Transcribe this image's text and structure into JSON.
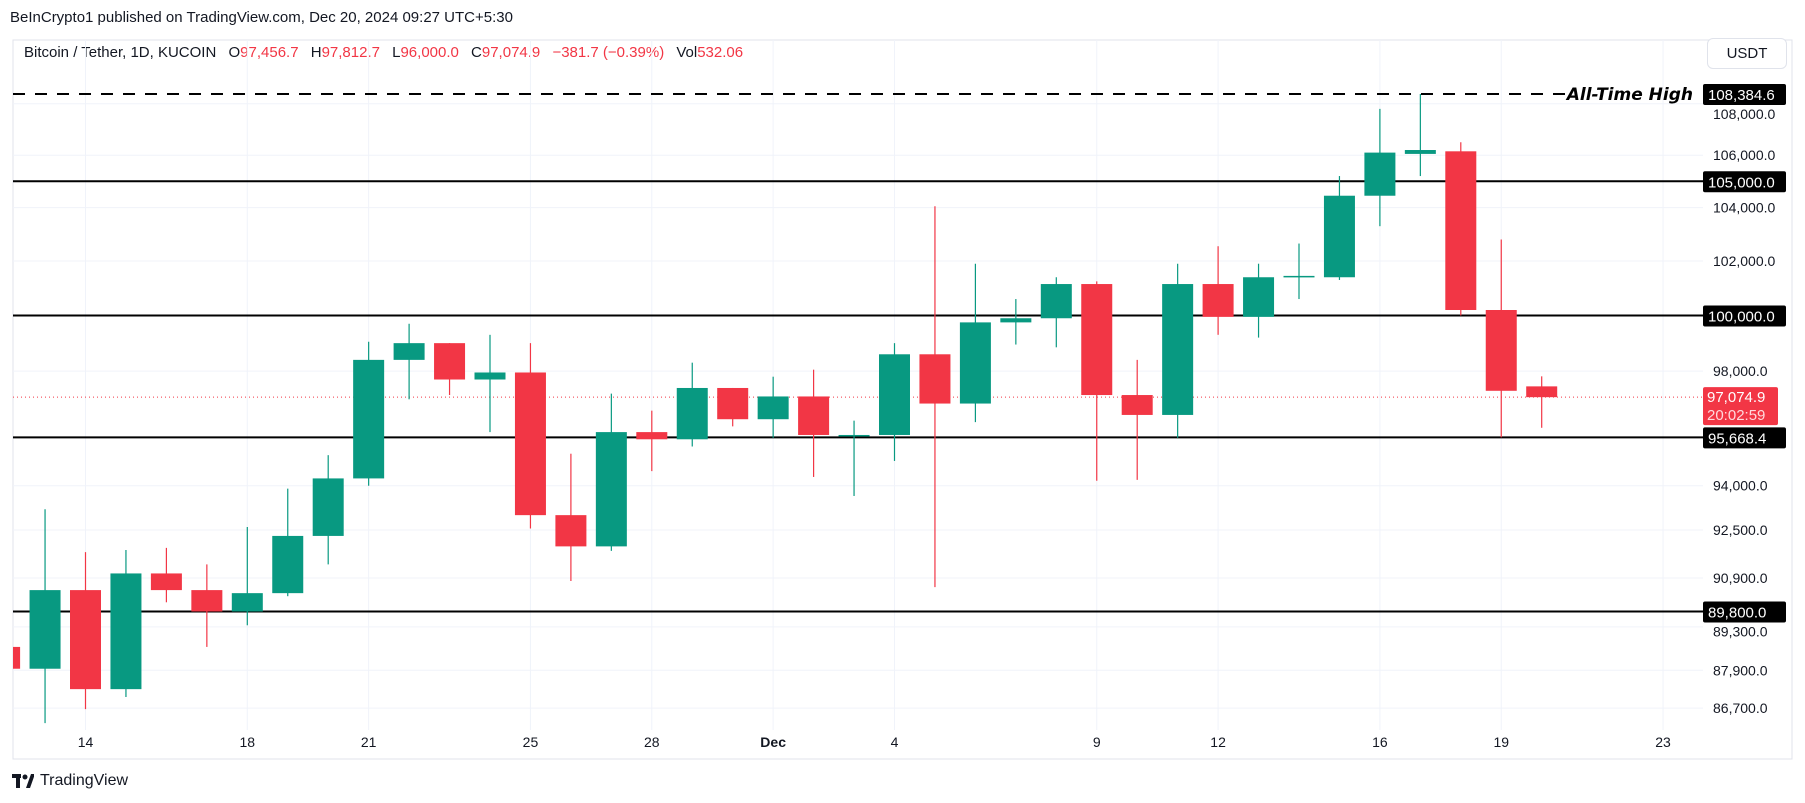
{
  "header": {
    "published": "BeInCrypto1 published on TradingView.com, Dec 20, 2024 09:27 UTC+5:30",
    "symbol": "Bitcoin / Tether, 1D, KUCOIN",
    "o_label": "O",
    "o": "97,456.7",
    "h_label": "H",
    "h": "97,812.7",
    "l_label": "L",
    "l": "96,000.0",
    "c_label": "C",
    "c": "97,074.9",
    "change": "−381.7 (−0.39%)",
    "vol_label": "Vol",
    "vol": "532.06",
    "currency_button": "USDT"
  },
  "footer": {
    "brand": "TradingView"
  },
  "colors": {
    "up": "#089981",
    "down": "#F23645",
    "level": "#000000",
    "grid": "#f0f3fa"
  },
  "chart_data": {
    "type": "candlestick",
    "scale": "log",
    "ylim": [
      86000,
      108700
    ],
    "price_ticks": [
      "106,000.0",
      "104,000.0",
      "102,000.0",
      "98,000.0",
      "94,000.0",
      "92,500.0",
      "90,900.0",
      "89,300.0",
      "87,900.0",
      "86,700.0",
      "108,000.0"
    ],
    "price_tick_values": [
      106000,
      104000,
      102000,
      98000,
      94000,
      92500,
      90900,
      89300,
      87900,
      86700,
      108000
    ],
    "date_ticks": [
      {
        "label": "14",
        "day": 2
      },
      {
        "label": "18",
        "day": 6
      },
      {
        "label": "21",
        "day": 9
      },
      {
        "label": "25",
        "day": 13
      },
      {
        "label": "28",
        "day": 16
      },
      {
        "label": "Dec",
        "day": 19,
        "bold": true
      },
      {
        "label": "4",
        "day": 22
      },
      {
        "label": "9",
        "day": 27
      },
      {
        "label": "12",
        "day": 30
      },
      {
        "label": "16",
        "day": 34
      },
      {
        "label": "19",
        "day": 37
      },
      {
        "label": "23",
        "day": 41
      }
    ],
    "candles_fields": [
      "date",
      "open",
      "high",
      "low",
      "close"
    ],
    "candles": [
      [
        "Nov 12",
        88650,
        88650,
        87950,
        87950
      ],
      [
        "Nov 13",
        87950,
        93200,
        86230,
        90500
      ],
      [
        "Nov 14",
        90500,
        91760,
        86670,
        87300
      ],
      [
        "Nov 15",
        87300,
        91830,
        87050,
        91050
      ],
      [
        "Nov 16",
        91050,
        91900,
        90100,
        90500
      ],
      [
        "Nov 17",
        90500,
        91350,
        88650,
        89800
      ],
      [
        "Nov 18",
        89800,
        92600,
        89350,
        90400
      ],
      [
        "Nov 19",
        90400,
        93900,
        90300,
        92300
      ],
      [
        "Nov 20",
        92300,
        95050,
        91350,
        94250
      ],
      [
        "Nov 21",
        94250,
        99050,
        94000,
        98400
      ],
      [
        "Nov 22",
        98400,
        99700,
        97000,
        99000
      ],
      [
        "Nov 23",
        99000,
        99000,
        97150,
        97700
      ],
      [
        "Nov 24",
        97700,
        99300,
        95850,
        97950
      ],
      [
        "Nov 25",
        97950,
        99000,
        92550,
        93000
      ],
      [
        "Nov 26",
        93000,
        95100,
        90800,
        91950
      ],
      [
        "Nov 27",
        91950,
        97200,
        91800,
        95850
      ],
      [
        "Nov 28",
        95850,
        96600,
        94500,
        95600
      ],
      [
        "Nov 29",
        95600,
        98300,
        95350,
        97400
      ],
      [
        "Nov 30",
        97400,
        97400,
        96050,
        96300
      ],
      [
        "Dec 1",
        96300,
        97800,
        95650,
        97100
      ],
      [
        "Dec 2",
        97100,
        98050,
        94300,
        95750
      ],
      [
        "Dec 3",
        95700,
        96250,
        93650,
        95750
      ],
      [
        "Dec 4",
        95750,
        99000,
        94850,
        98600
      ],
      [
        "Dec 5",
        98600,
        104050,
        90600,
        96850
      ],
      [
        "Dec 6",
        96850,
        101900,
        96200,
        99750
      ],
      [
        "Dec 7",
        99750,
        100600,
        98950,
        99900
      ],
      [
        "Dec 8",
        99900,
        101400,
        98850,
        101150
      ],
      [
        "Dec 9",
        101150,
        101250,
        94170,
        97150
      ],
      [
        "Dec 10",
        97150,
        98400,
        94200,
        96450
      ],
      [
        "Dec 11",
        96450,
        101900,
        95650,
        101150
      ],
      [
        "Dec 12",
        101150,
        102550,
        99300,
        99950
      ],
      [
        "Dec 13",
        99950,
        101900,
        99200,
        101400
      ],
      [
        "Dec 14",
        101400,
        102650,
        100600,
        101450
      ],
      [
        "Dec 15",
        101400,
        105200,
        101300,
        104450
      ],
      [
        "Dec 16",
        104450,
        107800,
        103300,
        106100
      ],
      [
        "Dec 17",
        106050,
        108384.6,
        105200,
        106200
      ],
      [
        "Dec 18",
        106150,
        106500,
        100000,
        100200
      ],
      [
        "Dec 19",
        100200,
        102800,
        95668.4,
        97300
      ],
      [
        "Dec 20",
        97456.7,
        97812.7,
        96000,
        97074.9
      ]
    ],
    "levels": [
      {
        "price": 108384.6,
        "label": "108,384.6",
        "style": "dashed",
        "annotation": "All-Time High"
      },
      {
        "price": 105000,
        "label": "105,000.0",
        "style": "solid"
      },
      {
        "price": 100000,
        "label": "100,000.0",
        "style": "solid"
      },
      {
        "price": 95668.4,
        "label": "95,668.4",
        "style": "solid"
      },
      {
        "price": 89800,
        "label": "89,800.0",
        "style": "solid"
      }
    ],
    "last_price": {
      "price": 97074.9,
      "label": "97,074.9",
      "countdown": "20:02:59"
    }
  }
}
